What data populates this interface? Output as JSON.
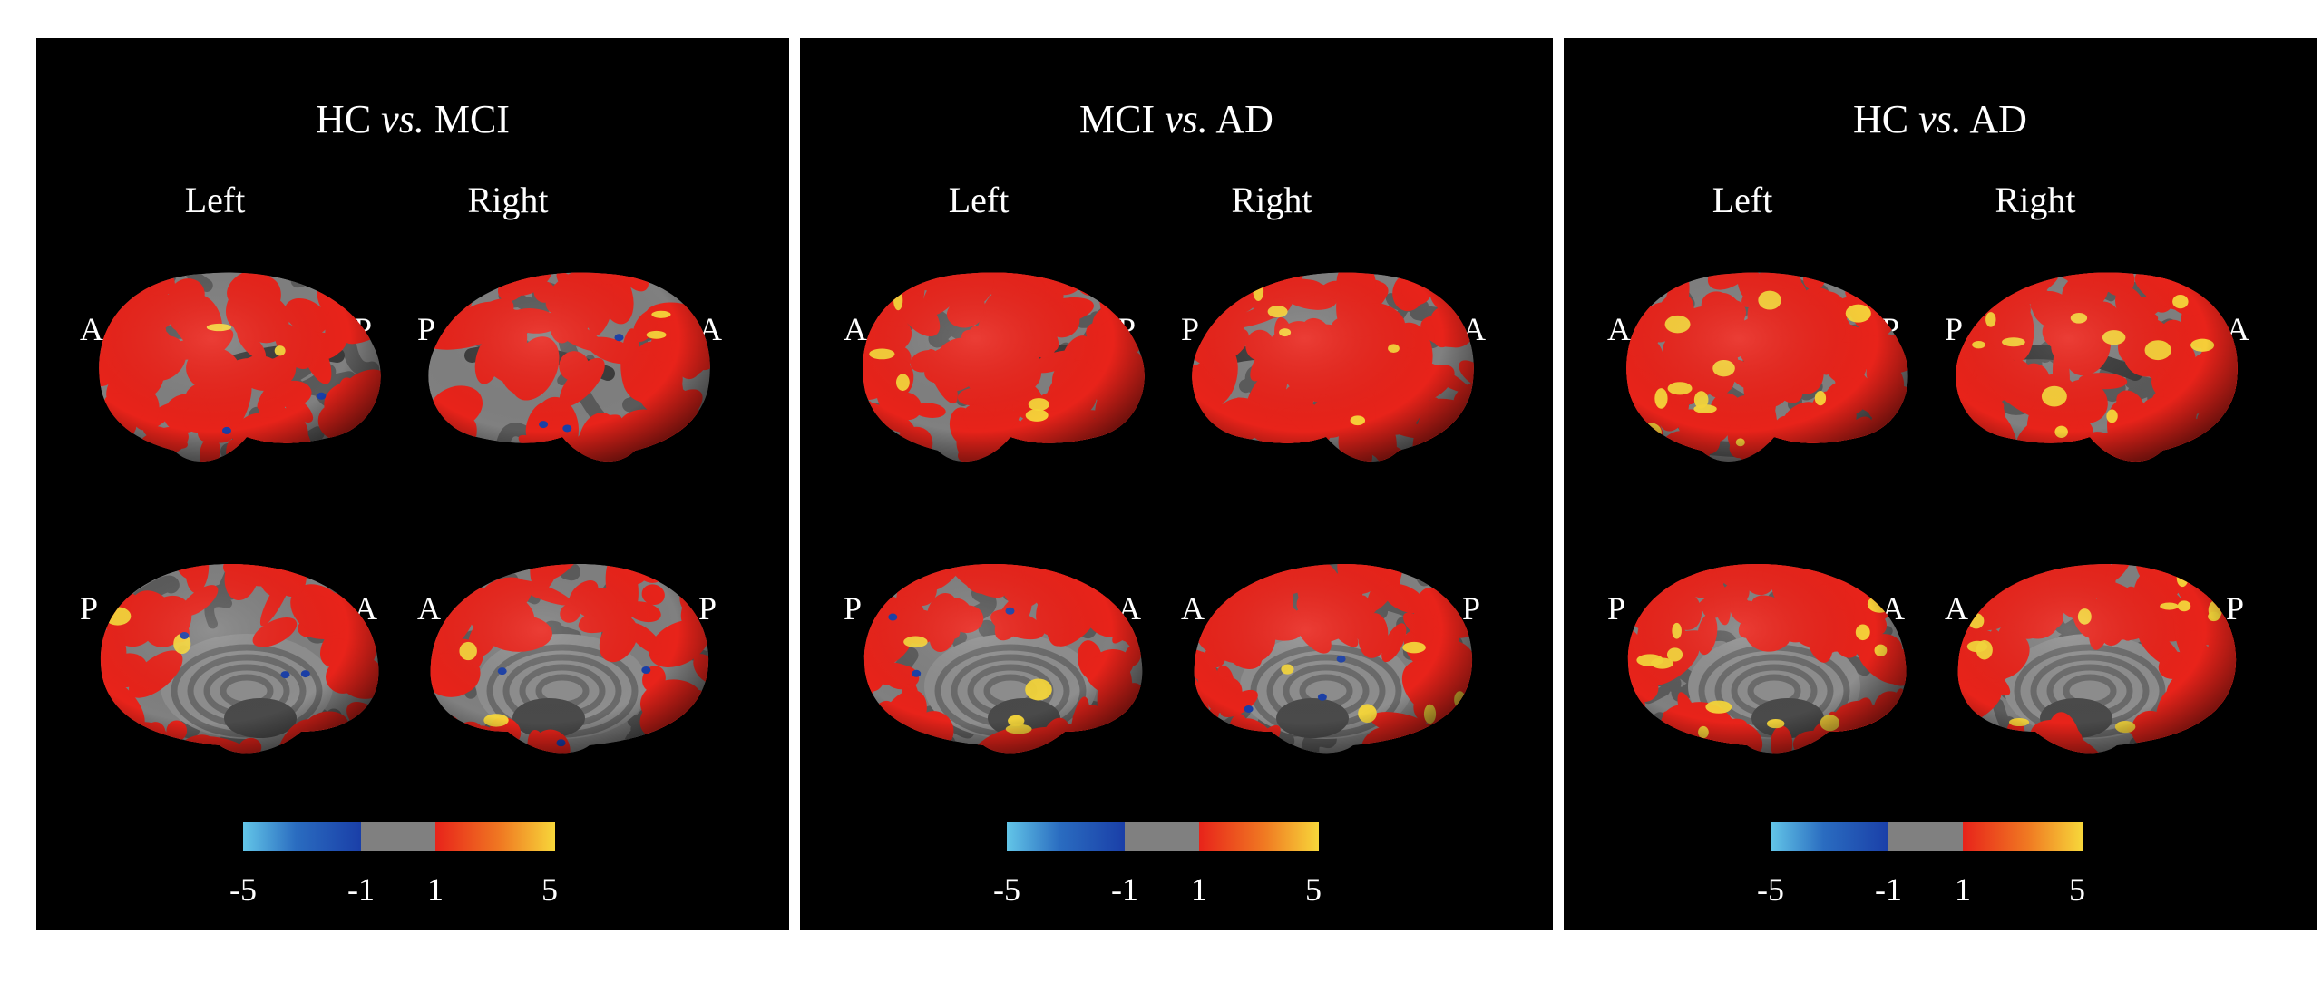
{
  "colors": {
    "background": "#000000",
    "cortex_gray": "#808080",
    "sulcus_gray": "#5a5a5a",
    "positive_red": "#e8231a",
    "positive_yellow": "#f7d73a",
    "negative_blue": "#1a3fa8",
    "negative_cyan": "#63c6e8"
  },
  "panels": [
    {
      "title_a": "HC",
      "title_vs": "vs.",
      "title_b": "MCI",
      "left_label": "Left",
      "right_label": "Right",
      "lat_left_a": "A",
      "lat_left_p": "P",
      "lat_right_p": "P",
      "lat_right_a": "A",
      "med_left_p": "P",
      "med_left_a": "A",
      "med_right_a": "A",
      "med_right_p": "P",
      "ticks": [
        "-5",
        "-1",
        "1",
        "5"
      ]
    },
    {
      "title_a": "MCI",
      "title_vs": "vs.",
      "title_b": "AD",
      "left_label": "Left",
      "right_label": "Right",
      "lat_left_a": "A",
      "lat_left_p": "P",
      "lat_right_p": "P",
      "lat_right_a": "A",
      "med_left_p": "P",
      "med_left_a": "A",
      "med_right_a": "A",
      "med_right_p": "P",
      "ticks": [
        "-5",
        "-1",
        "1",
        "5"
      ]
    },
    {
      "title_a": "HC",
      "title_vs": "vs.",
      "title_b": "AD",
      "left_label": "Left",
      "right_label": "Right",
      "lat_left_a": "A",
      "lat_left_p": "P",
      "lat_right_p": "P",
      "lat_right_a": "A",
      "med_left_p": "P",
      "med_left_a": "A",
      "med_right_a": "A",
      "med_right_p": "P",
      "ticks": [
        "-5",
        "-1",
        "1",
        "5"
      ]
    }
  ],
  "red_coverage": [
    0.35,
    0.72,
    0.9
  ],
  "yellow_coverage": [
    0.03,
    0.08,
    0.18
  ]
}
